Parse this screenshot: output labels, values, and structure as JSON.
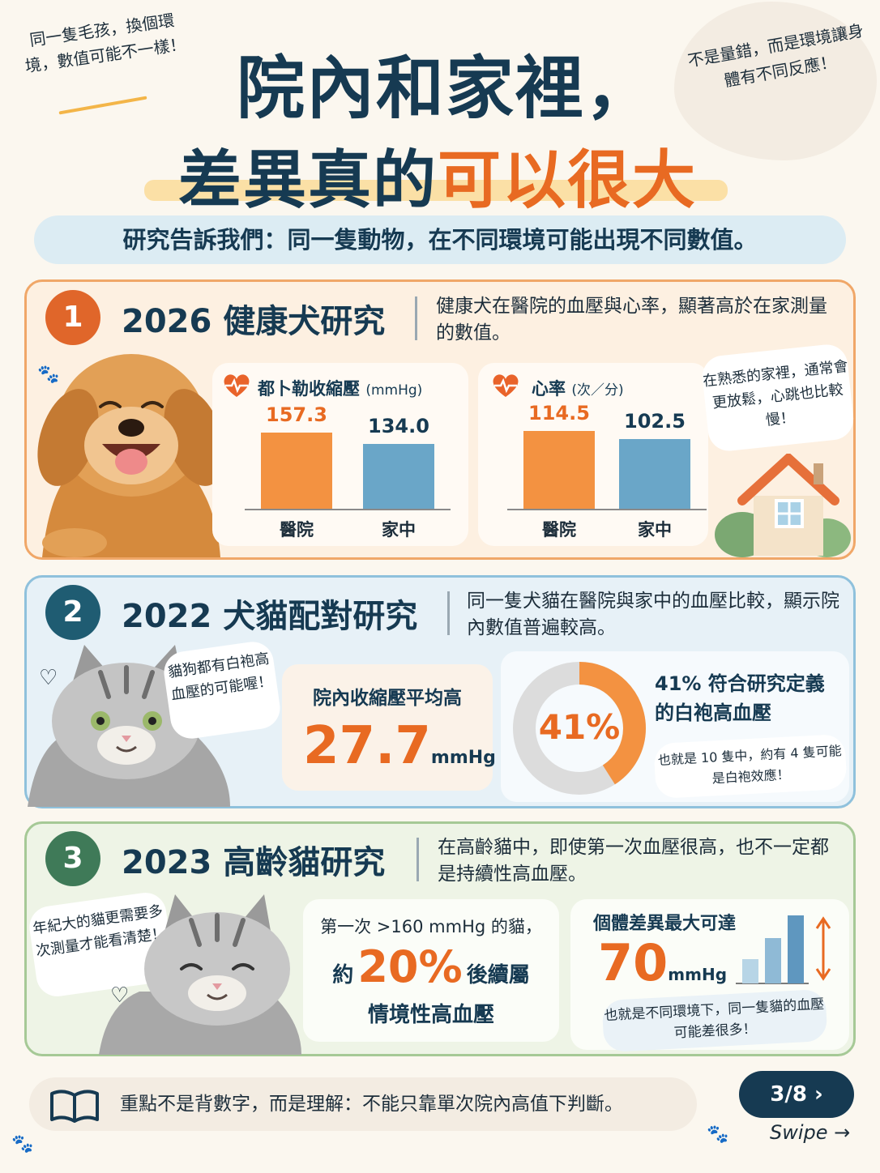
{
  "header": {
    "note_left": "同一隻毛孩，換個環境，數值可能不一樣！",
    "note_right": "不是量錯，而是環境讓身體有不同反應！",
    "title_line1": "院內和家裡，",
    "title_line2_a": "差異真的",
    "title_line2_b": "可以很大",
    "subtitle": "研究告訴我們：同一隻動物，在不同環境可能出現不同數值。"
  },
  "section1": {
    "number": "1",
    "title": "2026 健康犬研究",
    "desc": "健康犬在醫院的血壓與心率，顯著高於在家測量的數值。",
    "bubble": "在熟悉的家裡，通常會更放鬆，心跳也比較慢！"
  },
  "chart_data": [
    {
      "type": "bar",
      "title": "都卜勒收縮壓",
      "unit": "(mmHg)",
      "categories": [
        "醫院",
        "家中"
      ],
      "values": [
        157.3,
        134.0
      ],
      "value_labels": [
        "157.3",
        "134.0"
      ],
      "ylim": [
        0,
        180
      ],
      "colors": [
        "#f39241",
        "#6aa6c8"
      ]
    },
    {
      "type": "bar",
      "title": "心率",
      "unit": "(次／分)",
      "categories": [
        "醫院",
        "家中"
      ],
      "values": [
        114.5,
        102.5
      ],
      "value_labels": [
        "114.5",
        "102.5"
      ],
      "ylim": [
        0,
        135
      ],
      "colors": [
        "#f39241",
        "#6aa6c8"
      ]
    }
  ],
  "section2": {
    "number": "2",
    "title": "2022 犬貓配對研究",
    "desc": "同一隻犬貓在醫院與家中的血壓比較，顯示院內數值普遍較高。",
    "cat_bubble": "貓狗都有白袍高血壓的可能喔！",
    "avg_label": "院內收縮壓平均高",
    "avg_value": "27.7",
    "avg_unit": "mmHg",
    "donut_percent": 41,
    "donut_label": "41%",
    "donut_text": "41% 符合研究定義的白袍高血壓",
    "donut_bubble": "也就是 10 隻中，約有 4 隻可能是白袍效應！",
    "accent": "#f39241",
    "track": "#dcdcdc"
  },
  "section3": {
    "number": "3",
    "title": "2023 高齡貓研究",
    "desc": "在高齡貓中，即使第一次血壓很高，也不一定都是持續性高血壓。",
    "cat_bubble": "年紀大的貓更需要多次測量才能看清楚！",
    "first_line": "第一次 >160 mmHg 的貓，",
    "about": "約",
    "percent": "20%",
    "after": "後續屬",
    "situational": "情境性高血壓",
    "diff_label": "個體差異最大可達",
    "diff_value": "70",
    "diff_unit": "mmHg",
    "diff_bubble": "也就是不同環境下，同一隻貓的血壓可能差很多！"
  },
  "footer": {
    "text": "重點不是背數字，而是理解：不能只靠單次院內高值下判斷。",
    "page": "3/8",
    "chevron": "›",
    "swipe": "Swipe →"
  },
  "colors": {
    "navy": "#163a52",
    "orange": "#e86a22",
    "blue": "#6aa6c8",
    "teal": "#1f5c72",
    "green": "#3f7a58"
  },
  "icons": [
    "heart-pulse-icon",
    "book-icon",
    "house-icon",
    "paw-icon",
    "heart-outline-icon",
    "chevron-right-icon",
    "bar-chart-icon",
    "double-arrow-icon"
  ]
}
